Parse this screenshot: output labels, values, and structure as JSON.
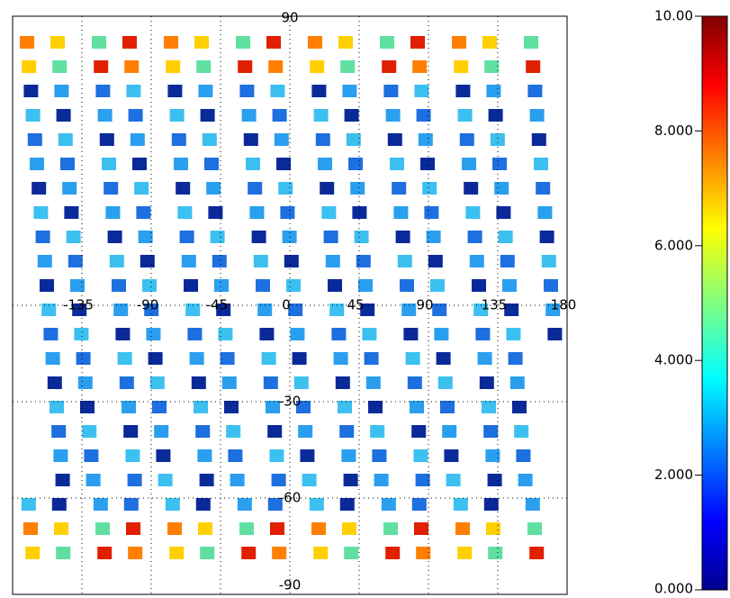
{
  "map": {
    "xlim": [
      -180,
      180
    ],
    "ylim": [
      -90,
      90
    ],
    "lon_labels": [
      {
        "value": -135,
        "label": "-135"
      },
      {
        "value": -90,
        "label": "-90"
      },
      {
        "value": -45,
        "label": "-45"
      },
      {
        "value": 0,
        "label": "0"
      },
      {
        "value": 45,
        "label": "45"
      },
      {
        "value": 90,
        "label": "90"
      },
      {
        "value": 135,
        "label": "135"
      },
      {
        "value": 180,
        "label": "180"
      }
    ],
    "lat_labels": [
      {
        "value": 90,
        "label": "90"
      },
      {
        "value": -30,
        "label": "-30"
      },
      {
        "value": -60,
        "label": "-60"
      },
      {
        "value": -90,
        "label": "-90"
      }
    ]
  },
  "colorbar": {
    "range": [
      0,
      10
    ],
    "ticks": [
      {
        "value": 0,
        "label": "0.000"
      },
      {
        "value": 2,
        "label": "2.000"
      },
      {
        "value": 4,
        "label": "4.000"
      },
      {
        "value": 6,
        "label": "6.000"
      },
      {
        "value": 8,
        "label": "8.000"
      },
      {
        "value": 10,
        "label": "10.00"
      }
    ]
  }
}
